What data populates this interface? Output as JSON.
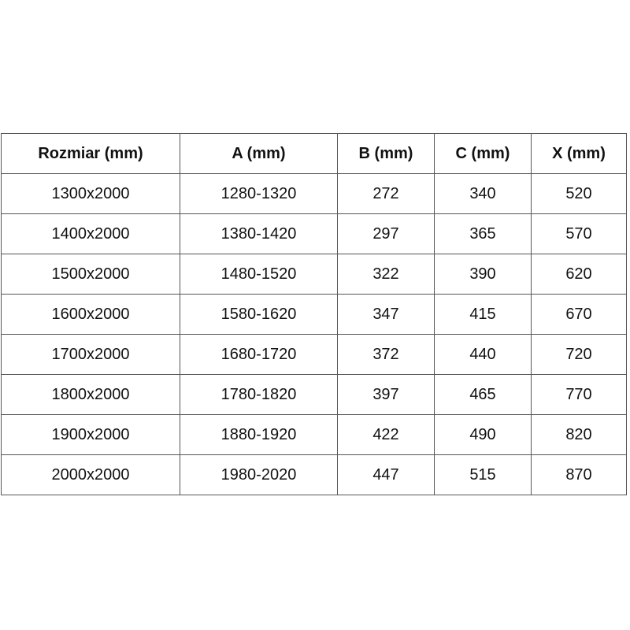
{
  "table": {
    "headers": [
      "Rozmiar (mm)",
      "A (mm)",
      "B (mm)",
      "C (mm)",
      "X (mm)"
    ],
    "rows": [
      [
        "1300x2000",
        "1280-1320",
        "272",
        "340",
        "520"
      ],
      [
        "1400x2000",
        "1380-1420",
        "297",
        "365",
        "570"
      ],
      [
        "1500x2000",
        "1480-1520",
        "322",
        "390",
        "620"
      ],
      [
        "1600x2000",
        "1580-1620",
        "347",
        "415",
        "670"
      ],
      [
        "1700x2000",
        "1680-1720",
        "372",
        "440",
        "720"
      ],
      [
        "1800x2000",
        "1780-1820",
        "397",
        "465",
        "770"
      ],
      [
        "1900x2000",
        "1880-1920",
        "422",
        "490",
        "820"
      ],
      [
        "2000x2000",
        "1980-2020",
        "447",
        "515",
        "870"
      ]
    ]
  }
}
